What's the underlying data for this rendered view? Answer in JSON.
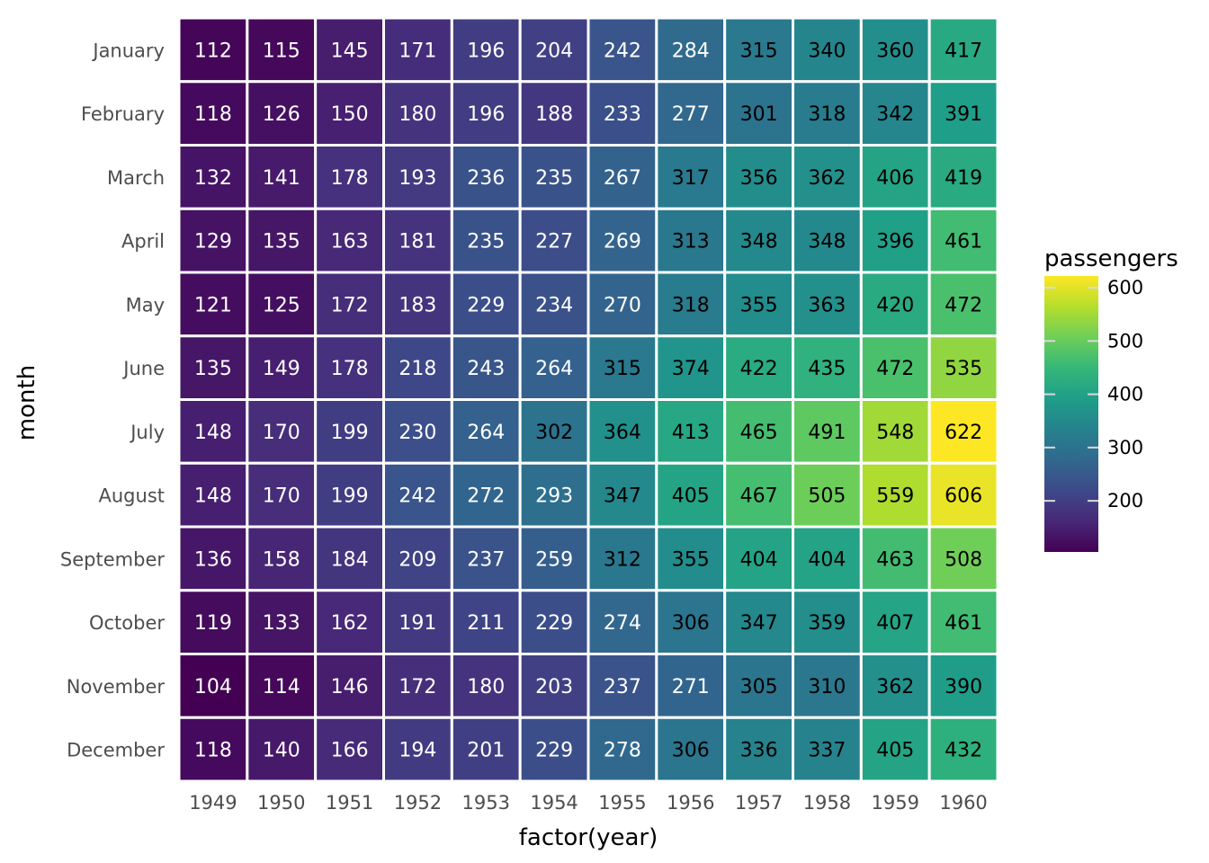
{
  "chart_data": {
    "type": "heatmap",
    "xlabel": "factor(year)",
    "ylabel": "month",
    "x_categories": [
      "1949",
      "1950",
      "1951",
      "1952",
      "1953",
      "1954",
      "1955",
      "1956",
      "1957",
      "1958",
      "1959",
      "1960"
    ],
    "y_categories": [
      "January",
      "February",
      "March",
      "April",
      "May",
      "June",
      "July",
      "August",
      "September",
      "October",
      "November",
      "December"
    ],
    "values": [
      [
        112,
        115,
        145,
        171,
        196,
        204,
        242,
        284,
        315,
        340,
        360,
        417
      ],
      [
        118,
        126,
        150,
        180,
        196,
        188,
        233,
        277,
        301,
        318,
        342,
        391
      ],
      [
        132,
        141,
        178,
        193,
        236,
        235,
        267,
        317,
        356,
        362,
        406,
        419
      ],
      [
        129,
        135,
        163,
        181,
        235,
        227,
        269,
        313,
        348,
        348,
        396,
        461
      ],
      [
        121,
        125,
        172,
        183,
        229,
        234,
        270,
        318,
        355,
        363,
        420,
        472
      ],
      [
        135,
        149,
        178,
        218,
        243,
        264,
        315,
        374,
        422,
        435,
        472,
        535
      ],
      [
        148,
        170,
        199,
        230,
        264,
        302,
        364,
        413,
        465,
        491,
        548,
        622
      ],
      [
        148,
        170,
        199,
        242,
        272,
        293,
        347,
        405,
        467,
        505,
        559,
        606
      ],
      [
        136,
        158,
        184,
        209,
        237,
        259,
        312,
        355,
        404,
        404,
        463,
        508
      ],
      [
        119,
        133,
        162,
        191,
        211,
        229,
        274,
        306,
        347,
        359,
        407,
        461
      ],
      [
        104,
        114,
        146,
        172,
        180,
        203,
        237,
        271,
        305,
        310,
        362,
        390
      ],
      [
        118,
        140,
        166,
        194,
        201,
        229,
        278,
        306,
        336,
        337,
        405,
        432
      ]
    ],
    "color_range": [
      104,
      622
    ],
    "colormap": "viridis",
    "legend": {
      "title": "passengers",
      "ticks": [
        200,
        300,
        400,
        500,
        600
      ],
      "placement": "right"
    }
  }
}
